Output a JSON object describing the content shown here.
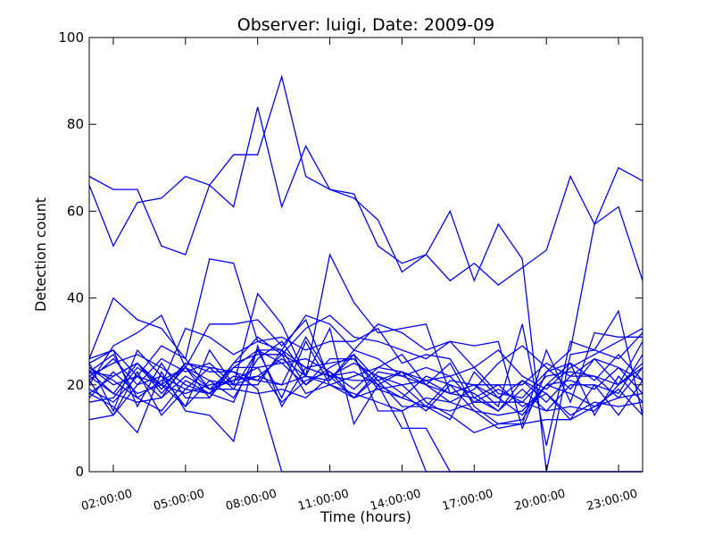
{
  "chart_data": {
    "type": "line",
    "title": "Observer: luigi, Date: 2009-09",
    "xlabel": "Time (hours)",
    "ylabel": "Detection count",
    "x": [
      0,
      1,
      2,
      3,
      4,
      5,
      6,
      7,
      8,
      9,
      10,
      11,
      12,
      13,
      14,
      15,
      16,
      17,
      18,
      19,
      20,
      21,
      22,
      23
    ],
    "xlim": [
      0,
      23
    ],
    "ylim": [
      0,
      100
    ],
    "xticks": [
      {
        "x": 1,
        "label": "02:00:00"
      },
      {
        "x": 4,
        "label": "05:00:00"
      },
      {
        "x": 7,
        "label": "08:00:00"
      },
      {
        "x": 10,
        "label": "11:00:00"
      },
      {
        "x": 13,
        "label": "14:00:00"
      },
      {
        "x": 16,
        "label": "17:00:00"
      },
      {
        "x": 19,
        "label": "20:00:00"
      },
      {
        "x": 22,
        "label": "23:00:00"
      }
    ],
    "yticks": [
      0,
      20,
      40,
      60,
      80,
      100
    ],
    "grid": false,
    "line_color": "#0000ff",
    "series": [
      {
        "values": [
          68,
          65,
          65,
          52,
          50,
          66,
          73,
          73,
          91,
          68,
          65,
          64,
          52,
          48,
          50,
          60,
          44,
          57,
          49,
          0,
          27,
          28,
          37,
          13
        ]
      },
      {
        "values": [
          66,
          52,
          62,
          63,
          68,
          66,
          61,
          84,
          61,
          75,
          65,
          63,
          58,
          46,
          50,
          44,
          48,
          43,
          47,
          51,
          68,
          57,
          70,
          67
        ]
      },
      {
        "values": [
          26,
          40,
          35,
          33,
          26,
          49,
          48,
          30,
          28,
          36,
          34,
          28,
          34,
          32,
          28,
          30,
          29,
          30,
          10,
          23,
          28,
          57,
          61,
          44
        ]
      },
      {
        "values": [
          25,
          14,
          28,
          22,
          15,
          28,
          20,
          41,
          34,
          22,
          50,
          39,
          32,
          33,
          34,
          18,
          20,
          15,
          34,
          6,
          30,
          28,
          26,
          32
        ]
      },
      {
        "values": [
          20,
          29,
          32,
          36,
          24,
          34,
          34,
          35,
          29,
          35,
          21,
          28,
          26,
          22,
          20,
          16,
          19,
          25,
          29,
          24,
          19,
          26,
          20,
          30
        ]
      },
      {
        "values": [
          18,
          22,
          25,
          20,
          33,
          31,
          27,
          30,
          31,
          28,
          30,
          30,
          33,
          25,
          27,
          26,
          17,
          20,
          20,
          25,
          22,
          26,
          24,
          18
        ]
      },
      {
        "values": [
          22,
          25,
          27,
          24,
          20,
          18,
          25,
          31,
          27,
          33,
          36,
          31,
          30,
          28,
          26,
          30,
          24,
          28,
          22,
          19,
          24,
          27,
          30,
          33
        ]
      },
      {
        "values": [
          24,
          20,
          22,
          29,
          26,
          19,
          19,
          28,
          25,
          26,
          23,
          17,
          23,
          22,
          24,
          22,
          24,
          18,
          17,
          23,
          25,
          21,
          27,
          21
        ]
      },
      {
        "values": [
          17,
          23,
          18,
          20,
          24,
          21,
          20,
          20,
          28,
          24,
          25,
          26,
          19,
          17,
          22,
          20,
          14,
          13,
          14,
          20,
          18,
          15,
          19,
          13
        ]
      },
      {
        "values": [
          19,
          16,
          22,
          17,
          25,
          23,
          23,
          21,
          27,
          24,
          22,
          23,
          20,
          17,
          15,
          12,
          23,
          17,
          21,
          18,
          13,
          16,
          15,
          16
        ]
      },
      {
        "values": [
          23,
          27,
          17,
          21,
          24,
          17,
          24,
          28,
          28,
          20,
          24,
          27,
          21,
          15,
          15,
          14,
          16,
          19,
          16,
          14,
          15,
          14,
          20,
          25
        ]
      },
      {
        "values": [
          25,
          28,
          15,
          25,
          17,
          17,
          25,
          27,
          27,
          18,
          20,
          17,
          22,
          18,
          14,
          20,
          18,
          14,
          19,
          14,
          20,
          20,
          13,
          21
        ]
      },
      {
        "values": [
          21,
          26,
          20,
          22,
          19,
          24,
          19,
          18,
          19,
          17,
          22,
          17,
          19,
          20,
          15,
          21,
          20,
          20,
          15,
          18,
          12,
          20,
          18,
          27
        ]
      },
      {
        "values": [
          12,
          13,
          20,
          26,
          23,
          25,
          20,
          22,
          26,
          22,
          20,
          18,
          16,
          14,
          17,
          16,
          14,
          10,
          11,
          12,
          12,
          15,
          17,
          18
        ]
      },
      {
        "values": [
          16,
          17,
          24,
          20,
          18,
          20,
          21,
          24,
          16,
          21,
          23,
          19,
          24,
          27,
          20,
          18,
          17,
          14,
          21,
          16,
          22,
          22,
          20,
          24
        ]
      },
      {
        "values": [
          18,
          15,
          9,
          23,
          14,
          13,
          7,
          29,
          15,
          24,
          22,
          21,
          21,
          23,
          20,
          25,
          15,
          11,
          12,
          20,
          25,
          13,
          22,
          16
        ]
      },
      {
        "values": [
          24,
          21,
          17,
          14,
          21,
          18,
          16,
          28,
          17,
          30,
          20,
          22,
          24,
          23,
          21,
          18,
          20,
          17,
          13,
          20,
          21,
          19,
          24,
          21
        ]
      },
      {
        "values": [
          22,
          18,
          16,
          17,
          22,
          19,
          21,
          22,
          20,
          31,
          22,
          25,
          22,
          20,
          21,
          22,
          16,
          16,
          16,
          22,
          23,
          22,
          17,
          24
        ]
      },
      {
        "values": [
          26,
          28,
          22,
          20,
          15,
          21,
          17,
          26,
          30,
          22,
          33,
          11,
          20,
          10,
          10,
          0,
          0,
          0,
          0,
          0,
          0,
          0,
          0,
          0
        ]
      },
      {
        "values": [
          23,
          22,
          25,
          19,
          25,
          24,
          23,
          19,
          0,
          0,
          0,
          0,
          0,
          0,
          0,
          0,
          0,
          0,
          0,
          0,
          0,
          0,
          0,
          0
        ]
      },
      {
        "values": [
          21,
          13,
          23,
          13,
          19,
          18,
          22,
          21,
          20,
          22,
          21,
          27,
          14,
          14,
          0,
          0,
          0,
          0,
          0,
          0,
          0,
          0,
          0,
          0
        ]
      },
      {
        "values": [
          23,
          18,
          25,
          18,
          24,
          19,
          24,
          24,
          25,
          20,
          26,
          26,
          20,
          23,
          16,
          13,
          9,
          11,
          11,
          28,
          16,
          32,
          31,
          31
        ]
      }
    ]
  }
}
